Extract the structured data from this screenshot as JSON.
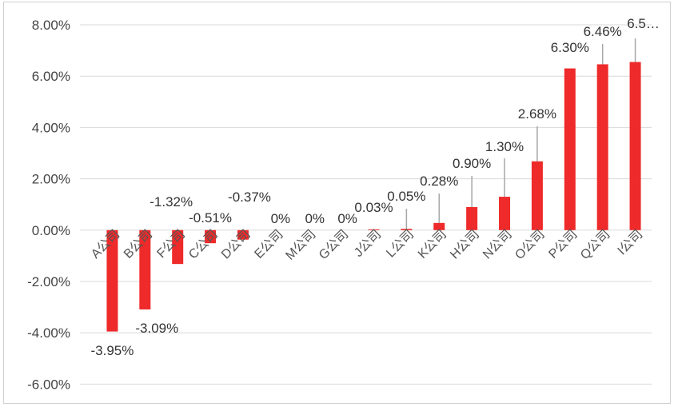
{
  "chart_data": {
    "type": "bar",
    "title": "",
    "xlabel": "",
    "ylabel": "",
    "ylim": [
      -6,
      8
    ],
    "y_ticks": [
      {
        "value": 8,
        "label": "8.00%"
      },
      {
        "value": 6,
        "label": "6.00%"
      },
      {
        "value": 4,
        "label": "4.00%"
      },
      {
        "value": 2,
        "label": "2.00%"
      },
      {
        "value": 0,
        "label": "0.00%"
      },
      {
        "value": -2,
        "label": "-2.00%"
      },
      {
        "value": -4,
        "label": "-4.00%"
      },
      {
        "value": -6,
        "label": "-6.00%"
      }
    ],
    "grid": true,
    "legend": "none",
    "bar_color": "#ee2a2a",
    "categories": [
      "A公司",
      "B公司",
      "F公司",
      "C公司",
      "D公司",
      "E公司",
      "M公司",
      "G公司",
      "J公司",
      "L公司",
      "K公司",
      "H公司",
      "N公司",
      "O公司",
      "P公司",
      "Q公司",
      "I公司"
    ],
    "values": [
      -3.95,
      -3.09,
      -1.32,
      -0.51,
      -0.37,
      0,
      0,
      0,
      0.03,
      0.05,
      0.28,
      0.9,
      1.3,
      2.68,
      6.3,
      6.46,
      6.55
    ],
    "data_labels": [
      "-3.95%",
      "-3.09%",
      "-1.32%",
      "-0.51%",
      "-0.37%",
      "0%",
      "0%",
      "0%",
      "0.03%",
      "0.05%",
      "0.28%",
      "0.90%",
      "1.30%",
      "2.68%",
      "6.30%",
      "6.46%",
      "6.5…"
    ]
  }
}
